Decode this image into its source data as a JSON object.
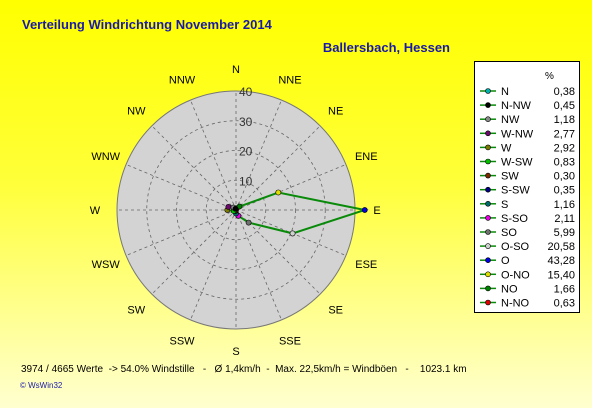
{
  "title": "Verteilung Windrichtung    November 2014",
  "location": "Ballersbach, Hessen",
  "footer": "3974 / 4665 Werte  -> 54.0% Windstille   -   Ø 1,4km/h  -  Max. 22,5km/h = Windböen   -    1023.1 km",
  "copyright": "© WsWin32",
  "legend_header": "%",
  "colors": {
    "polygon": "#0a8a0a",
    "disk": "#d3d3d3",
    "title": "#1a1aa8"
  },
  "chart_data": {
    "type": "radar",
    "title": "Verteilung Windrichtung    November 2014",
    "directions": [
      "N",
      "NNE",
      "NE",
      "ENE",
      "E",
      "ESE",
      "SE",
      "SSE",
      "S",
      "SSW",
      "SW",
      "WSW",
      "W",
      "WNW",
      "NW",
      "NNW"
    ],
    "rlim": [
      0,
      40
    ],
    "rings": [
      10,
      20,
      30,
      40
    ],
    "grid": true,
    "legend_placement": "right",
    "values": [
      0.38,
      0.63,
      1.66,
      15.4,
      43.28,
      20.58,
      5.99,
      2.11,
      1.16,
      0.35,
      0.3,
      0.83,
      2.92,
      2.77,
      1.18,
      0.45
    ],
    "legend": [
      {
        "label": "N",
        "value": "0,38",
        "color": "#00b0b0"
      },
      {
        "label": "N-NW",
        "value": "0,45",
        "color": "#000000"
      },
      {
        "label": "NW",
        "value": "1,18",
        "color": "#8a8a8a"
      },
      {
        "label": "W-NW",
        "value": "2,77",
        "color": "#6a0a6a"
      },
      {
        "label": "W",
        "value": "2,92",
        "color": "#7a7a00"
      },
      {
        "label": "W-SW",
        "value": "0,83",
        "color": "#00c000"
      },
      {
        "label": "SW",
        "value": "0,30",
        "color": "#7a2a00"
      },
      {
        "label": "S-SW",
        "value": "0,35",
        "color": "#000080"
      },
      {
        "label": "S",
        "value": "1,16",
        "color": "#006a6a"
      },
      {
        "label": "S-SO",
        "value": "2,11",
        "color": "#e000e0"
      },
      {
        "label": "SO",
        "value": "5,99",
        "color": "#707070"
      },
      {
        "label": "O-SO",
        "value": "20,58",
        "color": "#d0d0d0"
      },
      {
        "label": "O",
        "value": "43,28",
        "color": "#0000e0"
      },
      {
        "label": "O-NO",
        "value": "15,40",
        "color": "#e0e000"
      },
      {
        "label": "NO",
        "value": "1,66",
        "color": "#008000"
      },
      {
        "label": "N-NO",
        "value": "0,63",
        "color": "#e00000"
      }
    ]
  }
}
